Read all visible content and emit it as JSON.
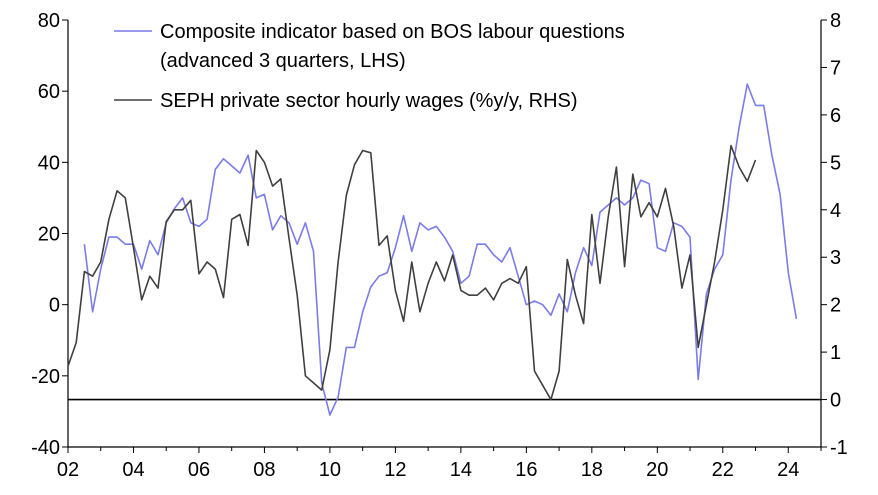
{
  "chart_data": {
    "type": "line",
    "title": "",
    "xlabel": "",
    "ylabel_left": "",
    "ylabel_right": "",
    "x_range": [
      2002,
      2025
    ],
    "x_ticks": [
      2002,
      2004,
      2006,
      2008,
      2010,
      2012,
      2014,
      2016,
      2018,
      2020,
      2022,
      2024
    ],
    "x_tick_labels": [
      "02",
      "04",
      "06",
      "08",
      "10",
      "12",
      "14",
      "16",
      "18",
      "20",
      "22",
      "24"
    ],
    "ylim_left": [
      -40,
      80
    ],
    "y_ticks_left": [
      -40,
      -20,
      0,
      20,
      40,
      60,
      80
    ],
    "y_tick_labels_left": [
      "-40",
      "-20",
      "0",
      "20",
      "40",
      "60",
      "80"
    ],
    "ylim_right": [
      -1,
      8
    ],
    "y_ticks_right": [
      -1,
      0,
      1,
      2,
      3,
      4,
      5,
      6,
      7,
      8
    ],
    "y_tick_labels_right": [
      "-1",
      "0",
      "1",
      "2",
      "3",
      "4",
      "5",
      "6",
      "7",
      "8"
    ],
    "zero_line_right": 0,
    "grid": false,
    "legend_position": "top",
    "series": [
      {
        "name": "Composite indicator based on BOS labour questions",
        "name_line2": "(advanced 3 quarters, LHS)",
        "axis": "left",
        "color": "#7b7bea",
        "x": [
          2002.5,
          2002.75,
          2003.0,
          2003.25,
          2003.5,
          2003.75,
          2004.0,
          2004.25,
          2004.5,
          2004.75,
          2005.0,
          2005.25,
          2005.5,
          2005.75,
          2006.0,
          2006.25,
          2006.5,
          2006.75,
          2007.0,
          2007.25,
          2007.5,
          2007.75,
          2008.0,
          2008.25,
          2008.5,
          2008.75,
          2009.0,
          2009.25,
          2009.5,
          2009.75,
          2010.0,
          2010.25,
          2010.5,
          2010.75,
          2011.0,
          2011.25,
          2011.5,
          2011.75,
          2012.0,
          2012.25,
          2012.5,
          2012.75,
          2013.0,
          2013.25,
          2013.5,
          2013.75,
          2014.0,
          2014.25,
          2014.5,
          2014.75,
          2015.0,
          2015.25,
          2015.5,
          2015.75,
          2016.0,
          2016.25,
          2016.5,
          2016.75,
          2017.0,
          2017.25,
          2017.5,
          2017.75,
          2018.0,
          2018.25,
          2018.5,
          2018.75,
          2019.0,
          2019.25,
          2019.5,
          2019.75,
          2020.0,
          2020.25,
          2020.5,
          2020.75,
          2021.0,
          2021.25,
          2021.5,
          2021.75,
          2022.0,
          2022.25,
          2022.5,
          2022.75,
          2023.0,
          2023.25,
          2023.5,
          2023.75,
          2024.0,
          2024.25
        ],
        "values": [
          17,
          -2,
          10,
          19,
          19,
          17,
          17,
          10,
          18,
          14,
          23,
          27,
          30,
          23,
          22,
          24,
          38,
          41,
          39,
          37,
          42,
          30,
          31,
          21,
          25,
          23,
          17,
          23,
          15,
          -22,
          -31,
          -26,
          -12,
          -12,
          -2,
          5,
          8,
          9,
          16,
          25,
          15,
          23,
          21,
          22,
          19,
          15,
          6,
          8,
          17,
          17,
          14,
          12,
          16,
          8,
          0,
          1,
          0,
          -3,
          3,
          -2,
          9,
          16,
          11,
          26,
          28,
          30,
          28,
          30,
          35,
          34,
          16,
          15,
          23,
          22,
          19,
          -21,
          3,
          10,
          14,
          35,
          50,
          62,
          56,
          56,
          42,
          31,
          9,
          -4
        ]
      },
      {
        "name": "SEPH private sector hourly wages (%y/y, RHS)",
        "axis": "right",
        "color": "#404040",
        "x": [
          2002.0,
          2002.25,
          2002.5,
          2002.75,
          2003.0,
          2003.25,
          2003.5,
          2003.75,
          2004.0,
          2004.25,
          2004.5,
          2004.75,
          2005.0,
          2005.25,
          2005.5,
          2005.75,
          2006.0,
          2006.25,
          2006.5,
          2006.75,
          2007.0,
          2007.25,
          2007.5,
          2007.75,
          2008.0,
          2008.25,
          2008.5,
          2008.75,
          2009.0,
          2009.25,
          2009.5,
          2009.75,
          2010.0,
          2010.25,
          2010.5,
          2010.75,
          2011.0,
          2011.25,
          2011.5,
          2011.75,
          2012.0,
          2012.25,
          2012.5,
          2012.75,
          2013.0,
          2013.25,
          2013.5,
          2013.75,
          2014.0,
          2014.25,
          2014.5,
          2014.75,
          2015.0,
          2015.25,
          2015.5,
          2015.75,
          2016.0,
          2016.25,
          2016.5,
          2016.75,
          2017.0,
          2017.25,
          2017.5,
          2017.75,
          2018.0,
          2018.25,
          2018.5,
          2018.75,
          2019.0,
          2019.25,
          2019.5,
          2019.75,
          2020.0,
          2020.25,
          2020.5,
          2020.75,
          2021.0,
          2021.25,
          2021.5,
          2021.75,
          2022.0,
          2022.25,
          2022.5,
          2022.75,
          2023.0
        ],
        "values": [
          0.7,
          1.2,
          2.7,
          2.6,
          2.9,
          3.8,
          4.4,
          4.25,
          3.2,
          2.1,
          2.6,
          2.35,
          3.75,
          4.0,
          4.0,
          4.2,
          2.65,
          2.9,
          2.75,
          2.15,
          3.8,
          3.9,
          3.25,
          5.25,
          5.0,
          4.5,
          4.65,
          3.4,
          2.2,
          0.5,
          0.35,
          0.2,
          1.05,
          2.9,
          4.3,
          4.95,
          5.25,
          5.2,
          3.25,
          3.45,
          2.3,
          1.65,
          2.9,
          1.85,
          2.45,
          2.9,
          2.5,
          3.05,
          2.3,
          2.2,
          2.2,
          2.35,
          2.1,
          2.45,
          2.55,
          2.45,
          2.8,
          0.6,
          0.3,
          0.0,
          0.6,
          2.95,
          2.2,
          1.6,
          3.9,
          2.45,
          3.85,
          4.9,
          2.8,
          4.75,
          3.85,
          4.15,
          3.85,
          4.45,
          3.65,
          2.35,
          3.05,
          1.1,
          2.0,
          2.9,
          4.0,
          5.35,
          4.9,
          4.6,
          5.05
        ]
      }
    ]
  }
}
